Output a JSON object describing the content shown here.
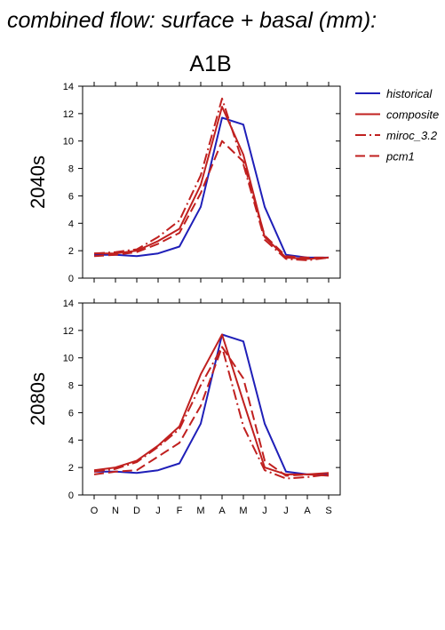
{
  "title": "combined flow: surface + basal (mm):",
  "scenario": "A1B",
  "colors": {
    "historical": "#1f1fb8",
    "model": "#c0201f"
  },
  "legend": [
    {
      "label": "historical",
      "color": "#1f1fb8",
      "dash": ""
    },
    {
      "label": "composite",
      "color": "#c0201f",
      "dash": ""
    },
    {
      "label": "miroc_3.2",
      "color": "#c0201f",
      "dash": "12,4,2,4"
    },
    {
      "label": "pcm1",
      "color": "#c0201f",
      "dash": "11,5"
    }
  ],
  "chart_data": [
    {
      "type": "line",
      "row_label": "2040s",
      "categories": [
        "O",
        "N",
        "D",
        "J",
        "F",
        "M",
        "A",
        "M",
        "J",
        "J",
        "A",
        "S"
      ],
      "ylim": [
        0,
        14
      ],
      "yticks": [
        0,
        2,
        4,
        6,
        8,
        10,
        12,
        14
      ],
      "series": [
        {
          "name": "historical",
          "color": "#1f1fb8",
          "dash": "",
          "values": [
            1.7,
            1.7,
            1.6,
            1.8,
            2.3,
            5.2,
            11.7,
            11.2,
            5.2,
            1.7,
            1.5,
            1.5
          ]
        },
        {
          "name": "composite",
          "color": "#c0201f",
          "dash": "",
          "values": [
            1.8,
            1.8,
            2.0,
            2.7,
            3.6,
            6.8,
            12.5,
            9.0,
            3.0,
            1.5,
            1.4,
            1.5
          ]
        },
        {
          "name": "miroc_3.2",
          "color": "#c0201f",
          "dash": "12,4,2,4",
          "values": [
            1.8,
            1.9,
            2.1,
            3.0,
            4.2,
            7.5,
            13.1,
            8.3,
            2.8,
            1.4,
            1.3,
            1.5
          ]
        },
        {
          "name": "pcm1",
          "color": "#c0201f",
          "dash": "11,5",
          "values": [
            1.6,
            1.7,
            1.9,
            2.5,
            3.3,
            6.2,
            10.0,
            8.5,
            3.1,
            1.6,
            1.5,
            1.5
          ]
        }
      ]
    },
    {
      "type": "line",
      "row_label": "2080s",
      "categories": [
        "O",
        "N",
        "D",
        "J",
        "F",
        "M",
        "A",
        "M",
        "J",
        "J",
        "A",
        "S"
      ],
      "ylim": [
        0,
        14
      ],
      "yticks": [
        0,
        2,
        4,
        6,
        8,
        10,
        12,
        14
      ],
      "series": [
        {
          "name": "historical",
          "color": "#1f1fb8",
          "dash": "",
          "values": [
            1.7,
            1.7,
            1.6,
            1.8,
            2.3,
            5.2,
            11.7,
            11.2,
            5.2,
            1.7,
            1.5,
            1.5
          ]
        },
        {
          "name": "composite",
          "color": "#c0201f",
          "dash": "",
          "values": [
            1.8,
            2.0,
            2.5,
            3.6,
            5.0,
            8.8,
            11.7,
            6.8,
            2.0,
            1.5,
            1.5,
            1.6
          ]
        },
        {
          "name": "miroc_3.2",
          "color": "#c0201f",
          "dash": "12,4,2,4",
          "values": [
            1.7,
            1.9,
            2.4,
            3.5,
            4.8,
            8.0,
            10.8,
            5.0,
            1.8,
            1.2,
            1.3,
            1.5
          ]
        },
        {
          "name": "pcm1",
          "color": "#c0201f",
          "dash": "11,5",
          "values": [
            1.5,
            1.7,
            1.8,
            2.8,
            3.8,
            6.5,
            10.8,
            8.5,
            2.5,
            1.4,
            1.5,
            1.4
          ]
        }
      ]
    }
  ]
}
